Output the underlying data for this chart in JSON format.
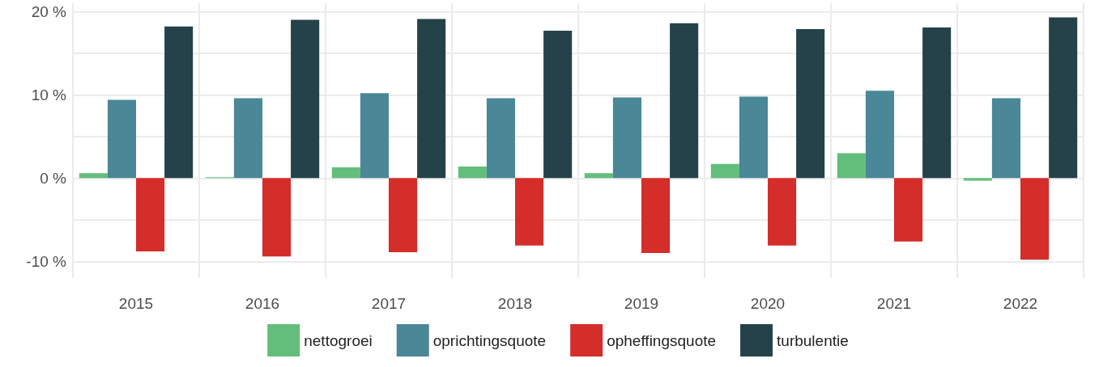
{
  "chart_data": {
    "type": "bar",
    "categories": [
      "2015",
      "2016",
      "2017",
      "2018",
      "2019",
      "2020",
      "2021",
      "2022"
    ],
    "series": [
      {
        "name": "nettogroei",
        "color": "#63be7b",
        "values": [
          0.6,
          0.1,
          1.3,
          1.4,
          0.6,
          1.7,
          3.0,
          -0.3
        ]
      },
      {
        "name": "oprichtingsquote",
        "color": "#4a8797",
        "values": [
          9.4,
          9.6,
          10.2,
          9.6,
          9.7,
          9.8,
          10.5,
          9.6
        ]
      },
      {
        "name": "opheffingsquote",
        "color": "#d42d2a",
        "values": [
          -8.8,
          -9.4,
          -8.9,
          -8.1,
          -9.0,
          -8.1,
          -7.6,
          -9.8
        ]
      },
      {
        "name": "turbulentie",
        "color": "#25424a",
        "values": [
          18.2,
          19.0,
          19.1,
          17.7,
          18.6,
          17.9,
          18.1,
          19.3
        ]
      }
    ],
    "ylim": [
      -12,
      21
    ],
    "yticks": [
      {
        "value": -10,
        "label": "-10 %"
      },
      {
        "value": -5,
        "label": null
      },
      {
        "value": 0,
        "label": "0 %"
      },
      {
        "value": 5,
        "label": null
      },
      {
        "value": 10,
        "label": "10 %"
      },
      {
        "value": 15,
        "label": null
      },
      {
        "value": 20,
        "label": "20 %"
      }
    ],
    "grid": true,
    "legend": "bottom"
  }
}
